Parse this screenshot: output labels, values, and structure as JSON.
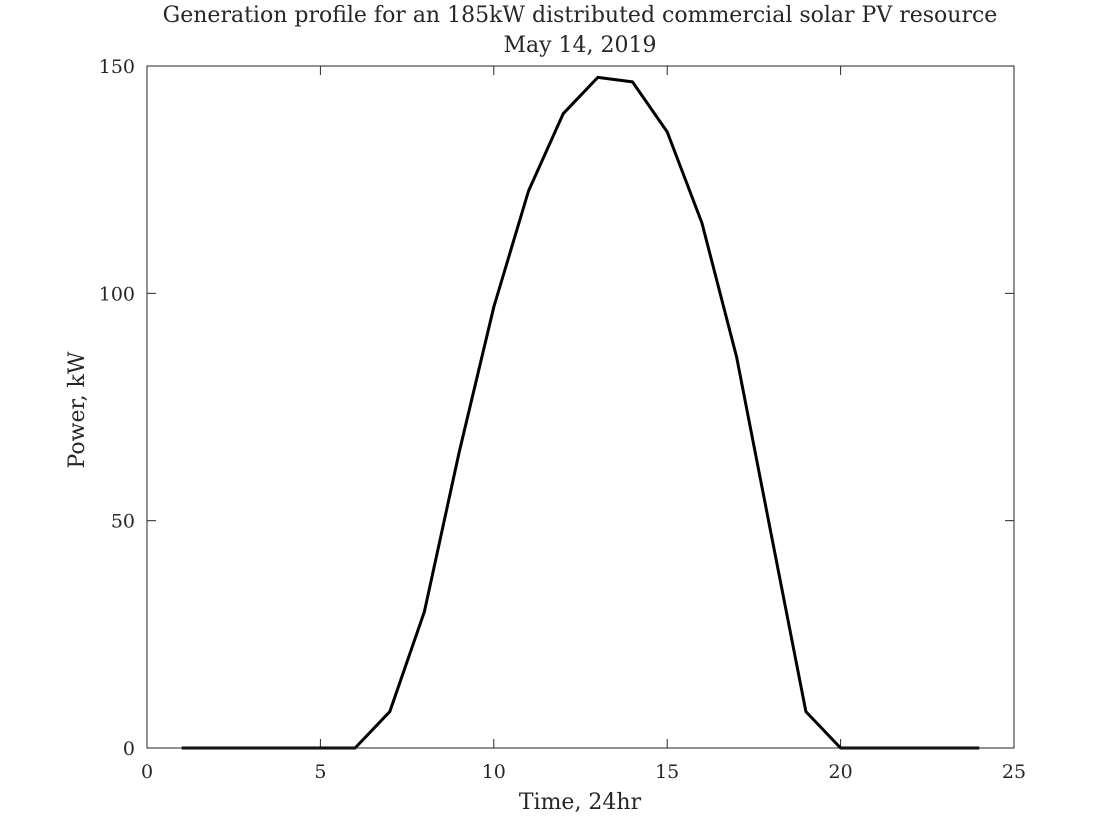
{
  "chart_data": {
    "type": "line",
    "title": "Generation profile for an 185kW distributed commercial solar PV resource",
    "subtitle": "May 14, 2019",
    "xlabel": "Time, 24hr",
    "ylabel": "Power, kW",
    "xlim": [
      0,
      25
    ],
    "ylim": [
      0,
      150
    ],
    "xticks": [
      0,
      5,
      10,
      15,
      20,
      25
    ],
    "yticks": [
      0,
      50,
      100,
      150
    ],
    "grid": false,
    "box": true,
    "series": [
      {
        "color": "#000000",
        "x": [
          1,
          2,
          3,
          4,
          5,
          6,
          7,
          8,
          9,
          10,
          11,
          12,
          13,
          14,
          15,
          16,
          17,
          18,
          19,
          20,
          21,
          22,
          23,
          24
        ],
        "y": [
          0,
          0,
          0,
          0,
          0,
          0,
          8,
          30,
          65,
          97,
          122.5,
          139.5,
          147.5,
          146.5,
          135.5,
          115.5,
          86,
          47,
          8,
          0,
          0,
          0,
          0,
          0
        ]
      }
    ]
  }
}
